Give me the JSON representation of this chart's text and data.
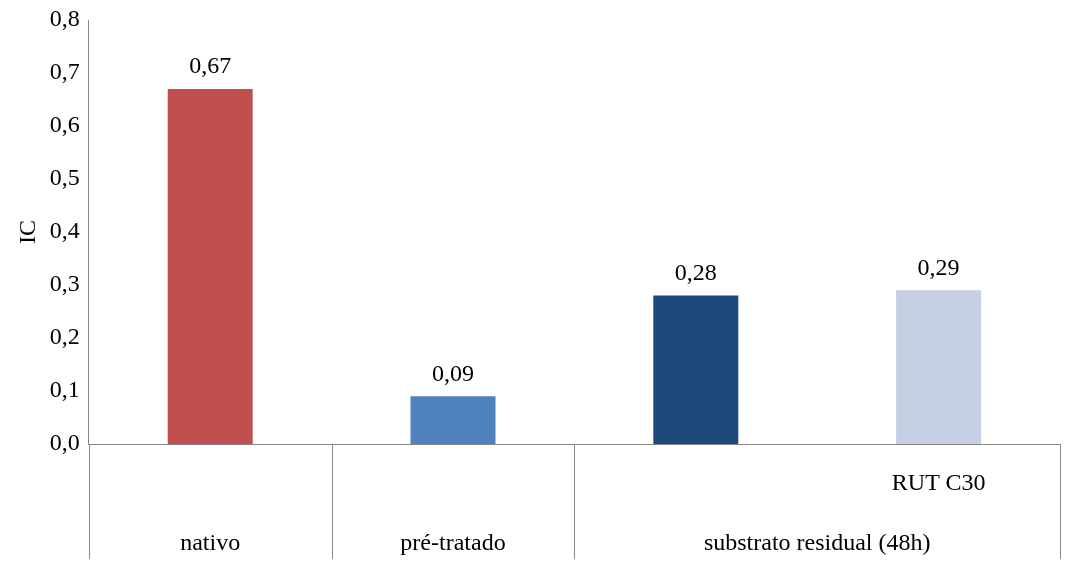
{
  "chart_data": {
    "type": "bar",
    "ylabel": "IC",
    "categories": [
      "nativo",
      "pré-tratado",
      null,
      "RUT C30"
    ],
    "values": [
      0.67,
      0.09,
      0.28,
      0.29
    ],
    "colors": [
      "#c0504d",
      "#4f81bd",
      "#1f497d",
      "#c6d0e5"
    ],
    "value_labels": [
      "0,67",
      "0,09",
      "0,28",
      "0,29"
    ],
    "ylim": [
      0,
      0.8
    ],
    "yticks": [
      {
        "value": 0,
        "label": "0,0"
      },
      {
        "value": 0.1,
        "label": "0,1"
      },
      {
        "value": 0.2,
        "label": "0,2"
      },
      {
        "value": 0.3,
        "label": "0,3"
      },
      {
        "value": 0.4,
        "label": "0,4"
      },
      {
        "value": 0.5,
        "label": "0,5"
      },
      {
        "value": 0.6,
        "label": "0,6"
      },
      {
        "value": 0.7,
        "label": "0,7"
      },
      {
        "value": 0.8,
        "label": "0,8"
      }
    ],
    "annotations": [
      "substrato residual (48h)"
    ],
    "grid": false,
    "legend": false
  }
}
